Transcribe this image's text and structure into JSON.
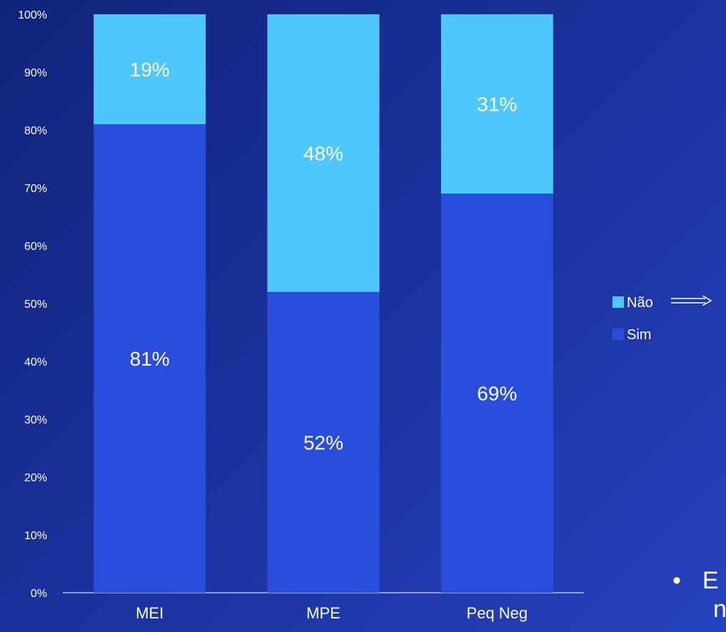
{
  "chart_data": {
    "type": "bar",
    "stacked": true,
    "percent_stacked": true,
    "categories": [
      "MEI",
      "MPE",
      "Peq Neg"
    ],
    "series": [
      {
        "name": "Sim",
        "values": [
          81,
          52,
          69
        ],
        "labels": [
          "81%",
          "52%",
          "69%"
        ],
        "color": "#2a4edb"
      },
      {
        "name": "Não",
        "values": [
          19,
          48,
          31
        ],
        "labels": [
          "19%",
          "48%",
          "31%"
        ],
        "color": "#4fc7fc"
      }
    ],
    "ylim": [
      0,
      100
    ],
    "yticks": [
      "0%",
      "10%",
      "20%",
      "30%",
      "40%",
      "50%",
      "60%",
      "70%",
      "80%",
      "90%",
      "100%"
    ],
    "grid": false,
    "legend_position": "right"
  },
  "legend": {
    "items": [
      {
        "label": "Não",
        "color": "#4fc7fc"
      },
      {
        "label": "Sim",
        "color": "#2a4edb"
      }
    ]
  },
  "footer": {
    "bullet": "•",
    "line1": "E",
    "line2": "n"
  }
}
